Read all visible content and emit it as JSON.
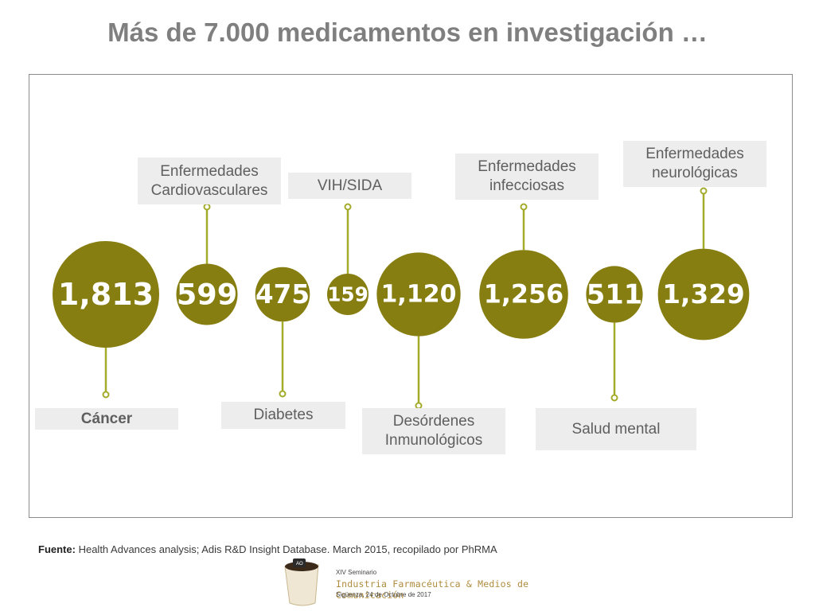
{
  "title": "Más de 7.000 medicamentos en investigación …",
  "colors": {
    "bubble": "#867e10",
    "stem": "#a3ab2b",
    "label_bg": "#ededed",
    "title": "#7f7f7f"
  },
  "chart_data": {
    "type": "bubble",
    "title": "Más de 7.000 medicamentos en investigación …",
    "categories": [
      "Cáncer",
      "Enfermedades Cardiovasculares",
      "Diabetes",
      "VIH/SIDA",
      "Desórdenes Inmunológicos",
      "Enfermedades infecciosas",
      "Salud mental",
      "Enfermedades neurológicas"
    ],
    "values": [
      1813,
      599,
      475,
      159,
      1120,
      1256,
      511,
      1329
    ],
    "value_labels": [
      "1,813",
      "599",
      "475",
      "159",
      "1,120",
      "1,256",
      "511",
      "1,329"
    ],
    "label_positions": [
      "below",
      "above",
      "below",
      "above",
      "below",
      "above",
      "below",
      "above"
    ],
    "label_text": [
      "Cáncer",
      "Enfermedades\nCardiovasculares",
      "Diabetes",
      "VIH/SIDA",
      "Desórdenes\nInmunológicos",
      "Enfermedades\ninfecciosas",
      "Salud mental",
      "Enfermedades\nneurológicas"
    ]
  },
  "source": {
    "prefix": "Fuente:",
    "text": "Health Advances analysis; Adis R&D Insight Database. March 2015, recopilado por PhRMA"
  },
  "seminar": {
    "line1": "XIV Seminario",
    "line2": "Industria Farmacéutica & Medios de Comunicación",
    "line3": "Sigüenza, 24 de Octubre de 2017",
    "cup_text": "AO"
  }
}
